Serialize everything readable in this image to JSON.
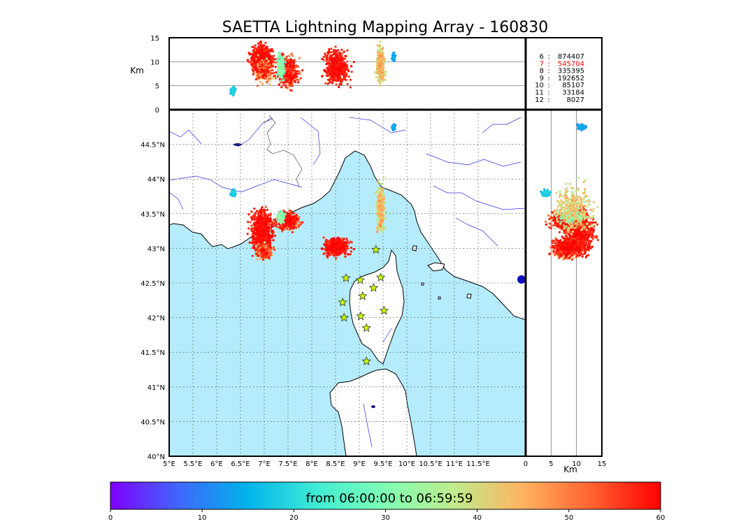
{
  "title": "SAETTA Lightning Mapping Array - 160830",
  "time_label": "from 06:00:00 to 06:59:59",
  "chart_data": {
    "type": "scatter",
    "title": "SAETTA Lightning Mapping Array - 160830",
    "map": {
      "xlim": [
        5,
        12.5
      ],
      "ylim": [
        40,
        45
      ],
      "x_ticks": [
        "5°E",
        "5.5°E",
        "6°E",
        "6.5°E",
        "7°E",
        "7.5°E",
        "8°E",
        "8.5°E",
        "9°E",
        "9.5°E",
        "10°E",
        "10.5°E",
        "11°E",
        "11.5°E"
      ],
      "x_tick_values": [
        5,
        5.5,
        6,
        6.5,
        7,
        7.5,
        8,
        8.5,
        9,
        9.5,
        10,
        10.5,
        11,
        11.5
      ],
      "y_ticks": [
        "40°N",
        "40.5°N",
        "41°N",
        "41.5°N",
        "42°N",
        "42.5°N",
        "43°N",
        "43.5°N",
        "44°N",
        "44.5°N"
      ],
      "y_tick_values": [
        40,
        40.5,
        41,
        41.5,
        42,
        42.5,
        43,
        43.5,
        44,
        44.5
      ],
      "grid": true
    },
    "altitude_top": {
      "ylabel": "Km",
      "ylim": [
        0,
        15
      ],
      "y_ticks": [
        "0",
        "5",
        "10",
        "15"
      ],
      "y_tick_values": [
        0,
        5,
        10,
        15
      ]
    },
    "altitude_side": {
      "xlabel": "Km",
      "xlim": [
        0,
        15
      ],
      "x_ticks": [
        "0",
        "5",
        "10",
        "15"
      ],
      "x_tick_values": [
        0,
        5,
        10,
        15
      ]
    },
    "station_counts": [
      {
        "stations": "6",
        "count": "874407",
        "highlight": false
      },
      {
        "stations": "7",
        "count": "545704",
        "highlight": true
      },
      {
        "stations": "8",
        "count": "335395",
        "highlight": false
      },
      {
        "stations": "9",
        "count": "192652",
        "highlight": false
      },
      {
        "stations": "10",
        "count": "85107",
        "highlight": false
      },
      {
        "stations": "11",
        "count": "33184",
        "highlight": false
      },
      {
        "stations": "12",
        "count": "8027",
        "highlight": false
      }
    ],
    "stations": [
      {
        "lon": 9.35,
        "lat": 42.98
      },
      {
        "lon": 8.72,
        "lat": 42.57
      },
      {
        "lon": 9.02,
        "lat": 42.54
      },
      {
        "lon": 9.45,
        "lat": 42.58
      },
      {
        "lon": 9.3,
        "lat": 42.43
      },
      {
        "lon": 9.07,
        "lat": 42.31
      },
      {
        "lon": 8.65,
        "lat": 42.22
      },
      {
        "lon": 9.52,
        "lat": 42.1
      },
      {
        "lon": 8.68,
        "lat": 42.0
      },
      {
        "lon": 9.03,
        "lat": 42.02
      },
      {
        "lon": 9.15,
        "lat": 41.85
      },
      {
        "lon": 9.15,
        "lat": 41.37
      }
    ],
    "clusters": [
      {
        "lon": 6.95,
        "lat": 43.25,
        "rlon": 0.22,
        "rlat": 0.28,
        "alt_min": 4,
        "alt_max": 14.5,
        "alt_mode": 10.5,
        "time_center": 57,
        "time_spread": 4,
        "density": 1
      },
      {
        "lon": 7.0,
        "lat": 42.95,
        "rlon": 0.15,
        "rlat": 0.1,
        "alt_min": 3,
        "alt_max": 12,
        "alt_mode": 8,
        "time_center": 50,
        "time_spread": 12,
        "density": 0.25
      },
      {
        "lon": 7.5,
        "lat": 43.4,
        "rlon": 0.22,
        "rlat": 0.12,
        "alt_min": 2,
        "alt_max": 14,
        "alt_mode": 8,
        "time_center": 55,
        "time_spread": 8,
        "density": 0.5
      },
      {
        "lon": 7.35,
        "lat": 43.45,
        "rlon": 0.07,
        "rlat": 0.07,
        "alt_min": 3,
        "alt_max": 13,
        "alt_mode": 9,
        "time_center": 28,
        "time_spread": 6,
        "density": 0.15
      },
      {
        "lon": 8.53,
        "lat": 43.02,
        "rlon": 0.25,
        "rlat": 0.12,
        "alt_min": 1,
        "alt_max": 14.5,
        "alt_mode": 9,
        "time_center": 57,
        "time_spread": 4,
        "density": 0.65
      },
      {
        "lon": 9.45,
        "lat": 43.58,
        "rlon": 0.08,
        "rlat": 0.3,
        "alt_min": 1,
        "alt_max": 14.8,
        "alt_mode": 9.5,
        "time_center": 40,
        "time_spread": 7,
        "density": 0.4
      },
      {
        "lon": 6.35,
        "lat": 43.8,
        "rlon": 0.05,
        "rlat": 0.04,
        "alt_min": 3,
        "alt_max": 6,
        "alt_mode": 4,
        "time_center": 17,
        "time_spread": 3,
        "density": 0.05
      },
      {
        "lon": 9.72,
        "lat": 44.75,
        "rlon": 0.03,
        "rlat": 0.04,
        "alt_min": 9,
        "alt_max": 13,
        "alt_mode": 11,
        "time_center": 12,
        "time_spread": 3,
        "density": 0.03
      }
    ],
    "colorbar": {
      "min": 0,
      "max": 60,
      "ticks": [
        "0",
        "10",
        "20",
        "30",
        "40",
        "50",
        "60"
      ],
      "tick_values": [
        0,
        10,
        20,
        30,
        40,
        50,
        60
      ],
      "colors": [
        "#7f00ff",
        "#3f67fc",
        "#00b4eb",
        "#40ecd4",
        "#80feb3",
        "#c0eb8d",
        "#ffb360",
        "#ff6230",
        "#ff0000"
      ]
    }
  }
}
